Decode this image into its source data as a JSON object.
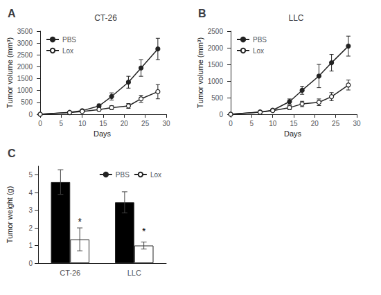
{
  "chart_data": [
    {
      "type": "line",
      "title": "CT-26",
      "annotations": [
        {
          "text": "A"
        }
      ],
      "xlabel": "Days",
      "ylabel": "Tumor volume (mm³)",
      "x": [
        0,
        7,
        10,
        14,
        17,
        21,
        24,
        28
      ],
      "series": [
        {
          "name": "PBS",
          "color": "#222222",
          "marker": "circle",
          "values": [
            0,
            80,
            150,
            350,
            750,
            1350,
            1950,
            2750
          ],
          "errors": [
            0,
            30,
            50,
            80,
            150,
            250,
            350,
            450
          ]
        },
        {
          "name": "Lox",
          "color": "#222222",
          "marker": "open_circle",
          "values": [
            0,
            70,
            120,
            200,
            280,
            350,
            650,
            950
          ],
          "errors": [
            0,
            25,
            40,
            60,
            80,
            100,
            150,
            300
          ]
        }
      ],
      "xlim": [
        -0.5,
        30
      ],
      "xticks": [
        0,
        5,
        10,
        15,
        20,
        25,
        30
      ],
      "ylim": [
        0,
        3500
      ],
      "yticks": [
        0,
        500,
        1000,
        1500,
        2000,
        2500,
        3000,
        3500
      ],
      "grid": false,
      "legend": "upper left"
    },
    {
      "type": "line",
      "title": "LLC",
      "annotations": [
        {
          "text": "B"
        }
      ],
      "xlabel": "Days",
      "ylabel": "Tumor volume (mm³)",
      "x": [
        0,
        7,
        10,
        14,
        17,
        21,
        24,
        28
      ],
      "series": [
        {
          "name": "PBS",
          "color": "#222222",
          "marker": "circle",
          "values": [
            0,
            70,
            120,
            380,
            720,
            1150,
            1550,
            2050
          ],
          "errors": [
            0,
            20,
            40,
            80,
            120,
            350,
            250,
            300
          ]
        },
        {
          "name": "Lox",
          "color": "#222222",
          "marker": "open_circle",
          "values": [
            0,
            60,
            110,
            200,
            310,
            360,
            530,
            880
          ],
          "errors": [
            0,
            20,
            35,
            60,
            80,
            100,
            120,
            150
          ]
        }
      ],
      "xlim": [
        -0.5,
        30
      ],
      "xticks": [
        0,
        5,
        10,
        15,
        20,
        25,
        30
      ],
      "ylim": [
        0,
        2500
      ],
      "yticks": [
        0,
        500,
        1000,
        1500,
        2000,
        2500
      ],
      "grid": false,
      "legend": "upper left"
    },
    {
      "type": "bar",
      "annotations": [
        {
          "text": "C"
        },
        {
          "text": "*",
          "x": "CT-26",
          "series": "Lox",
          "y": 2.1
        },
        {
          "text": "*",
          "x": "LLC",
          "series": "Lox",
          "y": 1.55
        }
      ],
      "ylabel": "Tumor weight (g)",
      "categories": [
        "CT-26",
        "LLC"
      ],
      "series": [
        {
          "name": "PBS",
          "color": "#000000",
          "values": [
            4.6,
            3.45
          ],
          "errors": [
            0.7,
            0.6
          ]
        },
        {
          "name": "Lox",
          "color": "#ffffff",
          "values": [
            1.35,
            1.0
          ],
          "errors": [
            0.65,
            0.2
          ]
        }
      ],
      "ylim": [
        0,
        5.5
      ],
      "yticks": [
        0,
        1,
        2,
        3,
        4,
        5
      ],
      "grid": false,
      "legend": "upper right"
    }
  ]
}
